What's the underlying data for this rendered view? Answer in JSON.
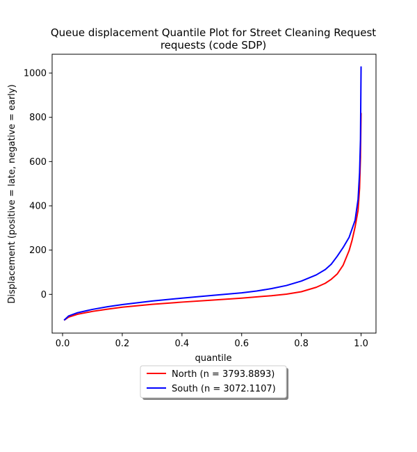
{
  "chart_data": {
    "type": "line",
    "title": [
      "Queue displacement Quantile Plot for Street Cleaning Request",
      "requests (code SDP)"
    ],
    "xlabel": "quantile",
    "ylabel": "Displacement (positive = late, negative = early)",
    "xlim": [
      -0.035,
      1.05
    ],
    "ylim": [
      -175,
      1085
    ],
    "xticks": [
      0.0,
      0.2,
      0.4,
      0.6,
      0.8,
      1.0
    ],
    "xtick_labels": [
      "0.0",
      "0.2",
      "0.4",
      "0.6",
      "0.8",
      "1.0"
    ],
    "yticks": [
      0,
      200,
      400,
      600,
      800,
      1000
    ],
    "ytick_labels": [
      "0",
      "200",
      "400",
      "600",
      "800",
      "1000"
    ],
    "grid": false,
    "legend_position": "below",
    "series": [
      {
        "name": "North (n = 3793.8893)",
        "color": "#ff0000",
        "x": [
          0.005,
          0.02,
          0.05,
          0.1,
          0.15,
          0.2,
          0.3,
          0.4,
          0.5,
          0.6,
          0.7,
          0.75,
          0.8,
          0.85,
          0.88,
          0.9,
          0.92,
          0.94,
          0.96,
          0.97,
          0.98,
          0.99,
          0.995,
          0.998,
          1.0
        ],
        "y": [
          -117,
          -103,
          -90,
          -77,
          -67,
          -58,
          -45,
          -35,
          -26,
          -17,
          -6,
          1,
          12,
          32,
          50,
          68,
          92,
          132,
          198,
          245,
          305,
          380,
          480,
          620,
          820
        ]
      },
      {
        "name": "South (n = 3072.1107)",
        "color": "#0000ff",
        "x": [
          0.005,
          0.02,
          0.05,
          0.1,
          0.15,
          0.2,
          0.3,
          0.4,
          0.5,
          0.6,
          0.65,
          0.7,
          0.75,
          0.8,
          0.85,
          0.88,
          0.9,
          0.92,
          0.94,
          0.96,
          0.98,
          0.99,
          0.995,
          0.998,
          1.0
        ],
        "y": [
          -117,
          -98,
          -83,
          -68,
          -56,
          -46,
          -30,
          -17,
          -5,
          7,
          15,
          26,
          40,
          60,
          88,
          112,
          136,
          172,
          212,
          258,
          335,
          430,
          550,
          700,
          1030
        ]
      }
    ]
  }
}
